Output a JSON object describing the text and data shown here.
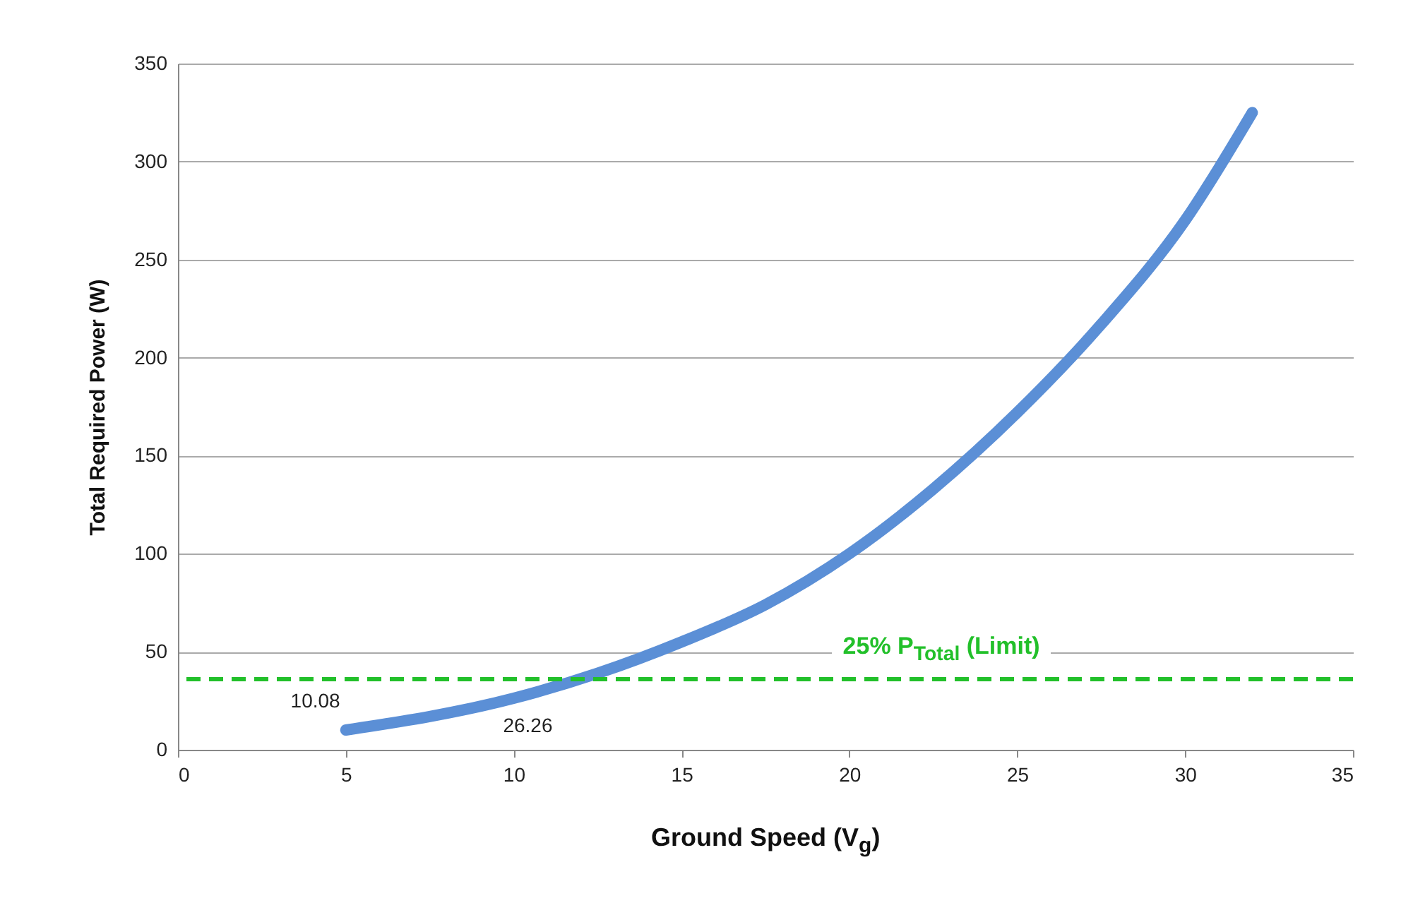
{
  "chart_data": {
    "type": "line",
    "xlabel": "Ground Speed (V$_{g}$)",
    "ylabel": "Total Required Power (W)",
    "x": [
      5,
      10,
      12.5,
      15,
      17.5,
      20,
      22.5,
      25,
      27.5,
      30,
      32
    ],
    "series": [
      {
        "color": "#5b8fd6",
        "values": [
          10.08,
          26.26,
          39,
          55,
          74,
          100,
          133,
          172,
          217,
          270,
          325
        ],
        "value_labels": [
          "10.08",
          "26.26",
          null,
          null,
          null,
          null,
          null,
          null,
          null,
          null,
          null
        ]
      }
    ],
    "xlim": [
      0,
      35
    ],
    "xticks": [
      0,
      5,
      10,
      15,
      20,
      25,
      30,
      35
    ],
    "ylim": [
      0,
      350
    ],
    "yticks": [
      0,
      50,
      100,
      150,
      200,
      250,
      300,
      350
    ],
    "grid": "y",
    "line_style": "solid",
    "ref_lines": [
      {
        "axis": "y",
        "value": 36,
        "label": "25% P$_{Total}$ (Limit)",
        "color": "#22c02a",
        "line_style": "dashed"
      }
    ]
  }
}
